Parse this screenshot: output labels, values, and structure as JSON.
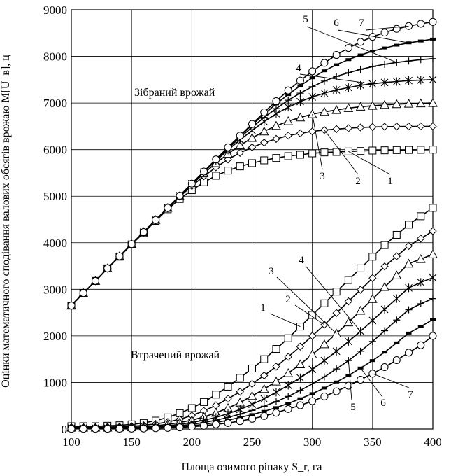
{
  "chart_data": {
    "type": "line",
    "ylabel": "Оцінки математичного сподівання валових обсягів врожаю M[U_в], ц",
    "xlabel": "Площа озимого ріпаку S_r, га",
    "xlim": [
      100,
      400
    ],
    "ylim": [
      0,
      9000
    ],
    "xticks": [
      100,
      150,
      200,
      250,
      300,
      350,
      400
    ],
    "yticks": [
      0,
      1000,
      2000,
      3000,
      4000,
      5000,
      6000,
      7000,
      8000,
      9000
    ],
    "grid": true,
    "region_labels": {
      "harvested": "Зібраний врожай",
      "lost": "Втрачений врожай"
    },
    "x": [
      100,
      110,
      120,
      130,
      140,
      150,
      160,
      170,
      180,
      190,
      200,
      210,
      220,
      230,
      240,
      250,
      260,
      270,
      280,
      290,
      300,
      310,
      320,
      330,
      340,
      350,
      360,
      370,
      380,
      390,
      400
    ],
    "series": [
      {
        "name": "1",
        "group": "harvested",
        "marker": "square",
        "values": [
          2650,
          2920,
          3180,
          3450,
          3700,
          3960,
          4210,
          4470,
          4720,
          4940,
          5130,
          5300,
          5440,
          5550,
          5640,
          5710,
          5770,
          5820,
          5860,
          5890,
          5920,
          5940,
          5950,
          5960,
          5970,
          5980,
          5985,
          5990,
          5993,
          5996,
          6000
        ]
      },
      {
        "name": "2",
        "group": "harvested",
        "marker": "diamond",
        "values": [
          2650,
          2920,
          3180,
          3450,
          3710,
          3970,
          4230,
          4480,
          4740,
          4990,
          5220,
          5430,
          5620,
          5790,
          5930,
          6050,
          6150,
          6230,
          6300,
          6350,
          6390,
          6420,
          6440,
          6460,
          6475,
          6485,
          6492,
          6496,
          6498,
          6499,
          6500
        ]
      },
      {
        "name": "3",
        "group": "harvested",
        "marker": "triangle",
        "values": [
          2650,
          2920,
          3180,
          3450,
          3710,
          3970,
          4230,
          4490,
          4750,
          5000,
          5250,
          5490,
          5710,
          5910,
          6090,
          6250,
          6390,
          6510,
          6610,
          6690,
          6760,
          6810,
          6850,
          6890,
          6920,
          6940,
          6960,
          6975,
          6985,
          6993,
          7000
        ]
      },
      {
        "name": "4",
        "group": "harvested",
        "marker": "star",
        "values": [
          2650,
          2920,
          3180,
          3450,
          3710,
          3970,
          4230,
          4490,
          4750,
          5010,
          5270,
          5520,
          5760,
          5990,
          6210,
          6410,
          6600,
          6770,
          6910,
          7030,
          7130,
          7210,
          7280,
          7330,
          7380,
          7410,
          7440,
          7460,
          7480,
          7490,
          7500
        ]
      },
      {
        "name": "5",
        "group": "harvested",
        "marker": "plus",
        "values": [
          2650,
          2920,
          3180,
          3450,
          3710,
          3970,
          4230,
          4490,
          4750,
          5010,
          5270,
          5530,
          5780,
          6020,
          6260,
          6480,
          6690,
          6880,
          7060,
          7210,
          7350,
          7470,
          7570,
          7650,
          7720,
          7780,
          7830,
          7870,
          7900,
          7930,
          7950
        ]
      },
      {
        "name": "6",
        "group": "harvested",
        "marker": "dash",
        "values": [
          2650,
          2920,
          3180,
          3450,
          3710,
          3970,
          4230,
          4490,
          4750,
          5010,
          5270,
          5530,
          5790,
          6040,
          6290,
          6530,
          6760,
          6980,
          7180,
          7370,
          7540,
          7690,
          7820,
          7930,
          8030,
          8110,
          8180,
          8240,
          8290,
          8330,
          8370
        ]
      },
      {
        "name": "7",
        "group": "harvested",
        "marker": "circle",
        "values": [
          2650,
          2920,
          3180,
          3450,
          3710,
          3970,
          4230,
          4490,
          4750,
          5010,
          5270,
          5530,
          5790,
          6050,
          6300,
          6550,
          6800,
          7040,
          7270,
          7480,
          7680,
          7860,
          8030,
          8180,
          8310,
          8420,
          8510,
          8590,
          8650,
          8700,
          8740
        ]
      },
      {
        "name": "1",
        "group": "lost",
        "marker": "square",
        "values": [
          60,
          60,
          60,
          70,
          80,
          100,
          130,
          180,
          250,
          340,
          450,
          580,
          740,
          910,
          1100,
          1300,
          1500,
          1720,
          1950,
          2200,
          2450,
          2700,
          2950,
          3200,
          3450,
          3700,
          3950,
          4170,
          4390,
          4570,
          4750
        ]
      },
      {
        "name": "2",
        "group": "lost",
        "marker": "diamond",
        "values": [
          40,
          40,
          40,
          45,
          50,
          60,
          80,
          110,
          150,
          210,
          290,
          390,
          510,
          650,
          800,
          970,
          1150,
          1340,
          1550,
          1770,
          2000,
          2240,
          2490,
          2740,
          2990,
          3240,
          3490,
          3710,
          3930,
          4090,
          4250
        ]
      },
      {
        "name": "3",
        "group": "lost",
        "marker": "triangle",
        "values": [
          30,
          30,
          30,
          30,
          35,
          40,
          50,
          70,
          100,
          140,
          190,
          260,
          350,
          450,
          570,
          710,
          860,
          1020,
          1200,
          1390,
          1600,
          1820,
          2050,
          2290,
          2540,
          2790,
          3050,
          3300,
          3550,
          3650,
          3750
        ]
      },
      {
        "name": "4",
        "group": "lost",
        "marker": "star",
        "values": [
          20,
          20,
          20,
          20,
          25,
          30,
          35,
          50,
          70,
          100,
          140,
          190,
          250,
          330,
          420,
          530,
          650,
          790,
          940,
          1100,
          1280,
          1470,
          1670,
          1880,
          2100,
          2330,
          2570,
          2800,
          3030,
          3150,
          3250
        ]
      },
      {
        "name": "5",
        "group": "lost",
        "marker": "plus",
        "values": [
          15,
          15,
          15,
          15,
          18,
          20,
          25,
          35,
          50,
          70,
          100,
          140,
          190,
          250,
          320,
          400,
          490,
          590,
          700,
          830,
          970,
          1120,
          1290,
          1470,
          1670,
          1880,
          2110,
          2340,
          2560,
          2690,
          2800
        ]
      },
      {
        "name": "6",
        "group": "lost",
        "marker": "dash",
        "values": [
          10,
          10,
          10,
          10,
          12,
          15,
          18,
          25,
          35,
          50,
          70,
          100,
          140,
          190,
          250,
          310,
          380,
          460,
          550,
          650,
          760,
          880,
          1010,
          1150,
          1310,
          1470,
          1650,
          1850,
          2060,
          2200,
          2350
        ]
      },
      {
        "name": "7",
        "group": "lost",
        "marker": "circle",
        "values": [
          5,
          5,
          5,
          5,
          7,
          10,
          12,
          18,
          25,
          35,
          50,
          70,
          100,
          130,
          170,
          220,
          280,
          350,
          430,
          510,
          600,
          700,
          810,
          930,
          1060,
          1190,
          1330,
          1480,
          1640,
          1800,
          2000
        ]
      }
    ]
  }
}
